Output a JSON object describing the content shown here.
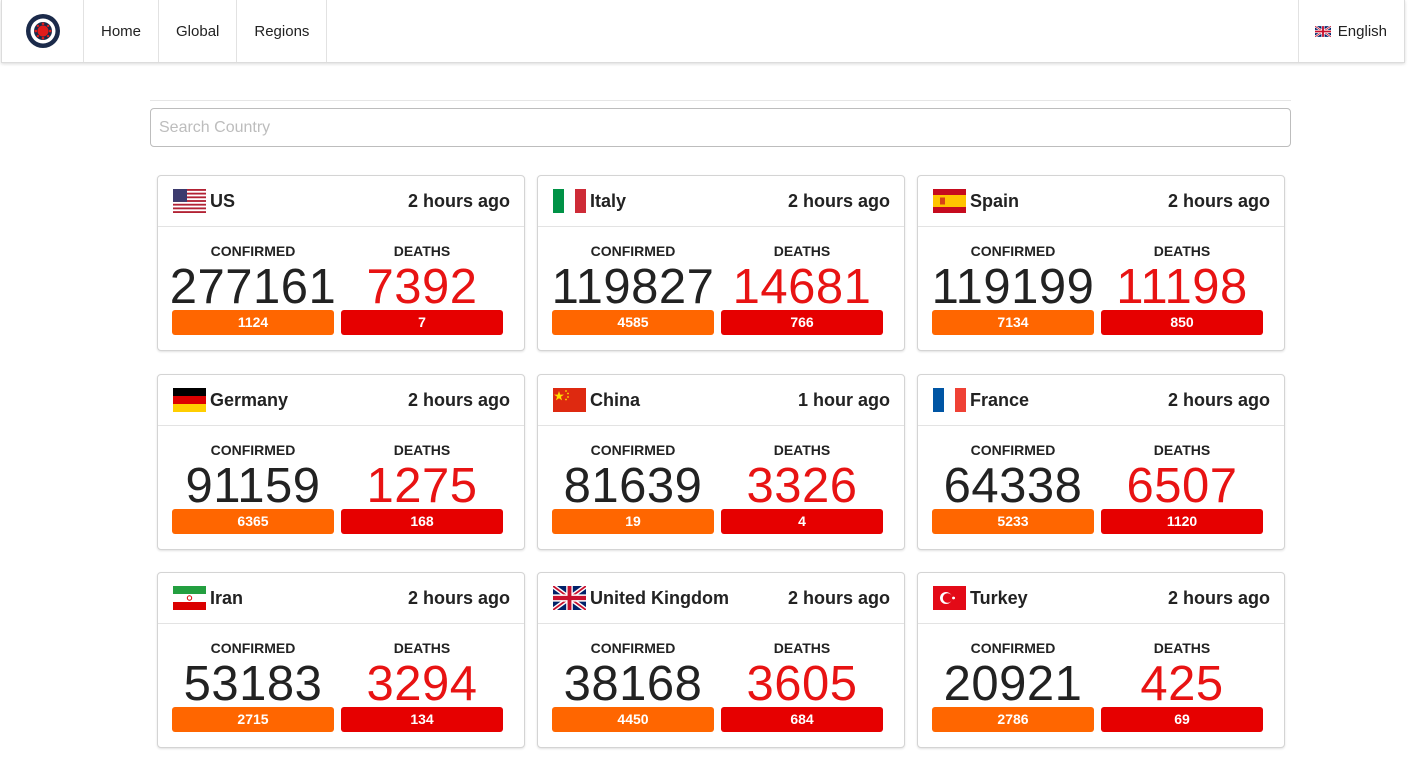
{
  "nav": {
    "logo_icon": "coronavirus-logo-icon",
    "items": [
      "Home",
      "Global",
      "Regions"
    ],
    "language": "English",
    "language_icon": "uk-flag-icon"
  },
  "search": {
    "placeholder": "Search Country",
    "value": ""
  },
  "labels": {
    "confirmed": "CONFIRMED",
    "deaths": "DEATHS"
  },
  "colors": {
    "confirmed_bar": "#ff6600",
    "deaths_bar": "#e60000",
    "deaths_text": "#e81313"
  },
  "countries": [
    {
      "name": "US",
      "flag": "us-flag-icon",
      "updated": "2 hours ago",
      "confirmed": "277161",
      "deaths": "7392",
      "new_confirmed": "1124",
      "new_deaths": "7"
    },
    {
      "name": "Italy",
      "flag": "italy-flag-icon",
      "updated": "2 hours ago",
      "confirmed": "119827",
      "deaths": "14681",
      "new_confirmed": "4585",
      "new_deaths": "766"
    },
    {
      "name": "Spain",
      "flag": "spain-flag-icon",
      "updated": "2 hours ago",
      "confirmed": "119199",
      "deaths": "11198",
      "new_confirmed": "7134",
      "new_deaths": "850"
    },
    {
      "name": "Germany",
      "flag": "germany-flag-icon",
      "updated": "2 hours ago",
      "confirmed": "91159",
      "deaths": "1275",
      "new_confirmed": "6365",
      "new_deaths": "168"
    },
    {
      "name": "China",
      "flag": "china-flag-icon",
      "updated": "1 hour ago",
      "confirmed": "81639",
      "deaths": "3326",
      "new_confirmed": "19",
      "new_deaths": "4"
    },
    {
      "name": "France",
      "flag": "france-flag-icon",
      "updated": "2 hours ago",
      "confirmed": "64338",
      "deaths": "6507",
      "new_confirmed": "5233",
      "new_deaths": "1120"
    },
    {
      "name": "Iran",
      "flag": "iran-flag-icon",
      "updated": "2 hours ago",
      "confirmed": "53183",
      "deaths": "3294",
      "new_confirmed": "2715",
      "new_deaths": "134"
    },
    {
      "name": "United Kingdom",
      "flag": "uk-flag-icon",
      "updated": "2 hours ago",
      "confirmed": "38168",
      "deaths": "3605",
      "new_confirmed": "4450",
      "new_deaths": "684"
    },
    {
      "name": "Turkey",
      "flag": "turkey-flag-icon",
      "updated": "2 hours ago",
      "confirmed": "20921",
      "deaths": "425",
      "new_confirmed": "2786",
      "new_deaths": "69"
    }
  ]
}
